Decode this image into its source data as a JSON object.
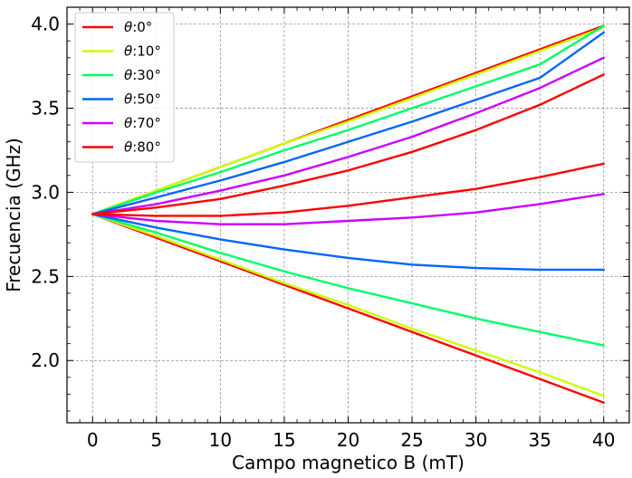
{
  "chart_data": {
    "type": "line",
    "xlabel": "Campo magnetico B (mT)",
    "ylabel": "Frecuencia (GHz)",
    "xlim": [
      -2,
      42
    ],
    "ylim": [
      1.63,
      4.1
    ],
    "xticks": [
      0,
      5,
      10,
      15,
      20,
      25,
      30,
      35,
      40
    ],
    "yticks": [
      2.0,
      2.5,
      3.0,
      3.5,
      4.0
    ],
    "xtick_labels": [
      "0",
      "5",
      "10",
      "15",
      "20",
      "25",
      "30",
      "35",
      "40"
    ],
    "ytick_labels": [
      "2.0",
      "2.5",
      "3.0",
      "3.5",
      "4.0"
    ],
    "grid": true,
    "legend_position": "top-left",
    "x": [
      0,
      5,
      10,
      15,
      20,
      25,
      30,
      35,
      40
    ],
    "series": [
      {
        "name": "θ:0°",
        "legend_symbol": "θ",
        "legend_label": ":0°",
        "color": "#ff0000",
        "branches": [
          [
            2.87,
            3.01,
            3.15,
            3.29,
            3.43,
            3.57,
            3.71,
            3.85,
            3.99
          ],
          [
            2.87,
            2.73,
            2.59,
            2.45,
            2.31,
            2.17,
            2.03,
            1.89,
            1.75
          ]
        ]
      },
      {
        "name": "θ:10°",
        "legend_symbol": "θ",
        "legend_label": ":10°",
        "color": "#ccff00",
        "branches": [
          [
            2.87,
            3.01,
            3.15,
            3.29,
            3.42,
            3.56,
            3.7,
            3.84,
            3.98
          ],
          [
            2.87,
            2.74,
            2.6,
            2.46,
            2.33,
            2.19,
            2.06,
            1.93,
            1.79
          ]
        ]
      },
      {
        "name": "θ:30°",
        "legend_symbol": "θ",
        "legend_label": ":30°",
        "color": "#00ff66",
        "branches": [
          [
            2.87,
            3.0,
            3.12,
            3.25,
            3.37,
            3.5,
            3.63,
            3.76,
            3.99
          ],
          [
            2.87,
            2.76,
            2.64,
            2.53,
            2.43,
            2.34,
            2.25,
            2.17,
            2.09
          ]
        ]
      },
      {
        "name": "θ:50°",
        "legend_symbol": "θ",
        "legend_label": ":50°",
        "color": "#0066ff",
        "branches": [
          [
            2.87,
            2.97,
            3.07,
            3.18,
            3.3,
            3.42,
            3.55,
            3.68,
            3.95
          ],
          [
            2.87,
            2.79,
            2.72,
            2.66,
            2.61,
            2.57,
            2.55,
            2.54,
            2.54
          ]
        ]
      },
      {
        "name": "θ:70°",
        "legend_symbol": "θ",
        "legend_label": ":70°",
        "color": "#cc00ff",
        "branches": [
          [
            2.87,
            2.93,
            3.01,
            3.1,
            3.21,
            3.33,
            3.47,
            3.62,
            3.8
          ],
          [
            2.87,
            2.83,
            2.81,
            2.81,
            2.83,
            2.85,
            2.88,
            2.93,
            2.99
          ]
        ]
      },
      {
        "name": "θ:80°",
        "legend_symbol": "θ",
        "legend_label": ":80°",
        "color": "#ff0000",
        "branches": [
          [
            2.87,
            2.91,
            2.96,
            3.04,
            3.13,
            3.24,
            3.37,
            3.52,
            3.7
          ],
          [
            2.87,
            2.86,
            2.86,
            2.88,
            2.92,
            2.97,
            3.02,
            3.09,
            3.17
          ]
        ]
      }
    ]
  }
}
